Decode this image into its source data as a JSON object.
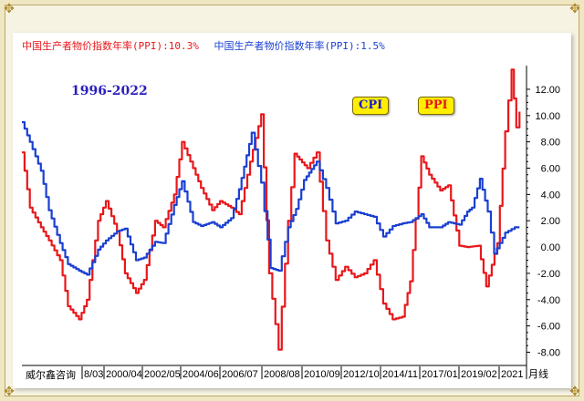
{
  "legend": {
    "ppi_label": "中国生产者物价指数年率(PPI):10.3%",
    "cpi_label": "中国生产者物价指数年率(PPI):1.5%"
  },
  "period_label": "1996-2022",
  "badges": {
    "cpi": "CPI",
    "ppi": "PPI"
  },
  "brand": "威尔鑫咨询",
  "colors": {
    "ppi": "#e8171b",
    "cpi": "#1a3fd1",
    "background": "#f7f3e3"
  },
  "chart_data": {
    "type": "line",
    "title": "",
    "xlabel": "",
    "ylabel": "",
    "ylim": [
      -8.8,
      13.8
    ],
    "y_ticks": [
      -8,
      -6,
      -4,
      -2,
      0,
      2,
      4,
      6,
      8,
      10,
      12
    ],
    "y_tick_labels": [
      "-8.00",
      "-6.00",
      "-4.00",
      "-2.00",
      "0.00",
      "2.00",
      "4.00",
      "6.00",
      "8.00",
      "10.00",
      "12.00"
    ],
    "x_tick_labels": [
      "8/03",
      "2000/04",
      "2002/05",
      "2004/06",
      "2006/07",
      "2008/08",
      "2010/09",
      "2012/10",
      "2014/11",
      "2017/01",
      "2019/02",
      "2021",
      "月线"
    ],
    "grid": false,
    "series": [
      {
        "name": "PPI",
        "color": "#e8171b",
        "x": [
          "1996/01",
          "1996/06",
          "1997/01",
          "1997/06",
          "1998/01",
          "1998/06",
          "1999/01",
          "1999/06",
          "2000/01",
          "2000/06",
          "2001/01",
          "2001/06",
          "2002/01",
          "2002/06",
          "2003/01",
          "2003/06",
          "2004/01",
          "2004/06",
          "2005/01",
          "2005/06",
          "2006/01",
          "2006/06",
          "2007/01",
          "2007/06",
          "2008/01",
          "2008/08",
          "2009/01",
          "2009/07",
          "2010/01",
          "2010/05",
          "2011/01",
          "2011/07",
          "2012/01",
          "2012/07",
          "2013/01",
          "2013/07",
          "2014/01",
          "2014/07",
          "2015/01",
          "2015/07",
          "2016/01",
          "2016/06",
          "2017/01",
          "2017/06",
          "2018/01",
          "2018/06",
          "2019/01",
          "2019/06",
          "2020/01",
          "2020/06",
          "2021/01",
          "2021/06",
          "2021/10",
          "2022/01",
          "2022/03"
        ],
        "y": [
          7.2,
          3.0,
          1.5,
          0.5,
          -1.0,
          -4.5,
          -5.5,
          -4.0,
          2.0,
          3.5,
          1.2,
          -2.0,
          -3.5,
          -2.5,
          2.0,
          1.5,
          4.0,
          8.0,
          6.0,
          4.5,
          2.8,
          3.5,
          3.0,
          2.5,
          6.5,
          10.1,
          -2.0,
          -7.8,
          2.0,
          7.1,
          6.0,
          7.2,
          0.5,
          -2.5,
          -1.5,
          -2.3,
          -2.0,
          -1.0,
          -4.3,
          -5.5,
          -5.3,
          -2.6,
          6.9,
          5.5,
          4.3,
          4.7,
          0.1,
          0.0,
          0.1,
          -3.0,
          0.3,
          8.8,
          13.5,
          9.1,
          10.3
        ]
      },
      {
        "name": "CPI",
        "color": "#1a3fd1",
        "x": [
          "1996/01",
          "1996/06",
          "1997/01",
          "1997/06",
          "1998/01",
          "1998/06",
          "1999/01",
          "1999/06",
          "2000/01",
          "2000/06",
          "2001/01",
          "2001/06",
          "2002/01",
          "2002/06",
          "2003/01",
          "2003/06",
          "2004/01",
          "2004/06",
          "2005/01",
          "2005/06",
          "2006/01",
          "2006/06",
          "2007/01",
          "2007/06",
          "2008/02",
          "2008/08",
          "2009/02",
          "2009/07",
          "2010/01",
          "2010/06",
          "2010/11",
          "2011/07",
          "2012/01",
          "2012/07",
          "2013/01",
          "2013/07",
          "2014/01",
          "2014/07",
          "2015/01",
          "2015/07",
          "2016/01",
          "2016/06",
          "2017/01",
          "2017/06",
          "2018/01",
          "2018/06",
          "2019/01",
          "2019/06",
          "2019/09",
          "2020/02",
          "2020/07",
          "2020/11",
          "2021/06",
          "2021/12",
          "2022/03"
        ],
        "y": [
          9.5,
          8.0,
          5.8,
          2.8,
          0.3,
          -1.3,
          -1.8,
          -2.1,
          -0.2,
          0.5,
          1.2,
          1.4,
          -1.0,
          -0.8,
          0.4,
          0.3,
          3.2,
          5.0,
          1.9,
          1.6,
          1.9,
          1.5,
          2.2,
          4.4,
          8.7,
          4.9,
          -1.6,
          -1.8,
          1.5,
          2.9,
          5.1,
          6.5,
          4.5,
          1.8,
          2.0,
          2.7,
          2.5,
          2.3,
          0.8,
          1.6,
          1.8,
          1.9,
          2.5,
          1.5,
          1.5,
          1.9,
          1.7,
          2.7,
          3.0,
          5.2,
          2.7,
          -0.5,
          1.1,
          1.5,
          1.5
        ]
      }
    ]
  }
}
